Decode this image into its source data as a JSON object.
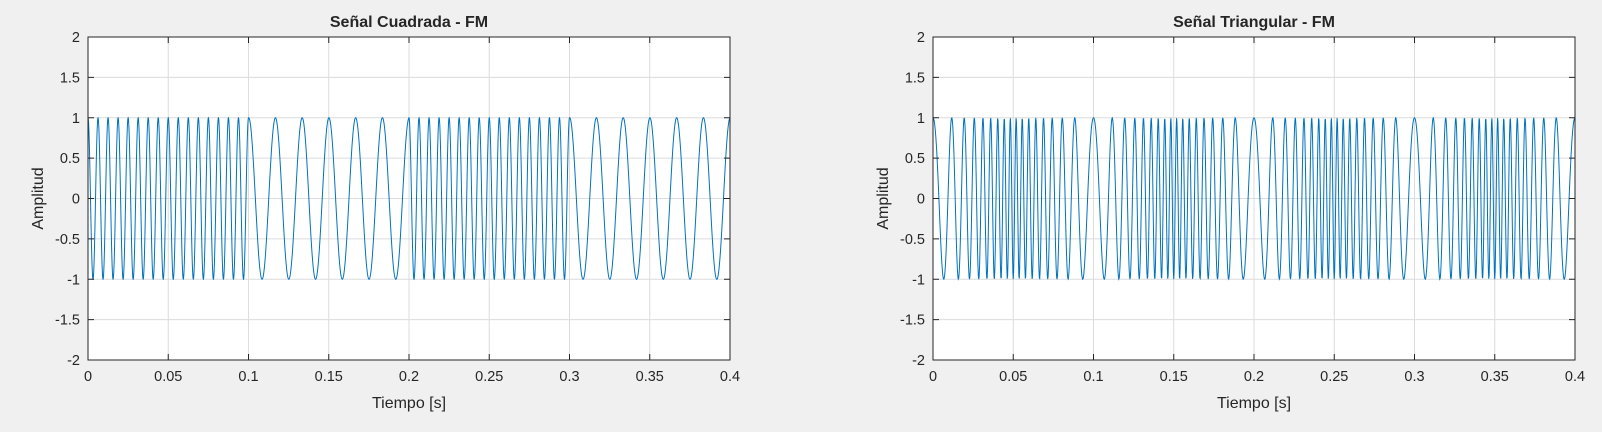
{
  "colors": {
    "figure_bg": "#f0f0f0",
    "axes_bg": "#ffffff",
    "line": "#0072bd",
    "grid": "#dcdcdc",
    "text": "#262626"
  },
  "chart_data": [
    {
      "type": "line",
      "title": "Señal Cuadrada - FM",
      "xlabel": "Tiempo [s]",
      "ylabel": "Amplitud",
      "xlim": [
        0,
        0.4
      ],
      "ylim": [
        -2,
        2
      ],
      "grid": true,
      "xticks": [
        0,
        0.05,
        0.1,
        0.15,
        0.2,
        0.25,
        0.3,
        0.35,
        0.4
      ],
      "xtick_labels": [
        "0",
        "0.05",
        "0.1",
        "0.15",
        "0.2",
        "0.25",
        "0.3",
        "0.35",
        "0.4"
      ],
      "yticks": [
        -2,
        -1.5,
        -1,
        -0.5,
        0,
        0.5,
        1,
        1.5,
        2
      ],
      "ytick_labels": [
        "-2",
        "-1.5",
        "-1",
        "-0.5",
        "0",
        "0.5",
        "1",
        "1.5",
        "2"
      ],
      "signal": {
        "amplitude": 1,
        "modulation": "square",
        "high_freq_hz": 160,
        "low_freq_hz": 60,
        "high_freq_intervals_s": [
          [
            0,
            0.1
          ],
          [
            0.2,
            0.3
          ]
        ],
        "low_freq_intervals_s": [
          [
            0.1,
            0.2
          ],
          [
            0.3,
            0.4
          ]
        ]
      }
    },
    {
      "type": "line",
      "title": "Señal Triangular - FM",
      "xlabel": "Tiempo [s]",
      "ylabel": "Amplitud",
      "xlim": [
        0,
        0.4
      ],
      "ylim": [
        -2,
        2
      ],
      "grid": true,
      "xticks": [
        0,
        0.05,
        0.1,
        0.15,
        0.2,
        0.25,
        0.3,
        0.35,
        0.4
      ],
      "xtick_labels": [
        "0",
        "0.05",
        "0.1",
        "0.15",
        "0.2",
        "0.25",
        "0.3",
        "0.35",
        "0.4"
      ],
      "yticks": [
        -2,
        -1.5,
        -1,
        -0.5,
        0,
        0.5,
        1,
        1.5,
        2
      ],
      "ytick_labels": [
        "-2",
        "-1.5",
        "-1",
        "-0.5",
        "0",
        "0.5",
        "1",
        "1.5",
        "2"
      ],
      "signal": {
        "amplitude": 1,
        "modulation": "triangular",
        "carrier_freq_hz": 170,
        "freq_deviation_hz": 110,
        "modulation_period_s": 0.1,
        "sample_interval_s": 0.00025
      }
    }
  ]
}
